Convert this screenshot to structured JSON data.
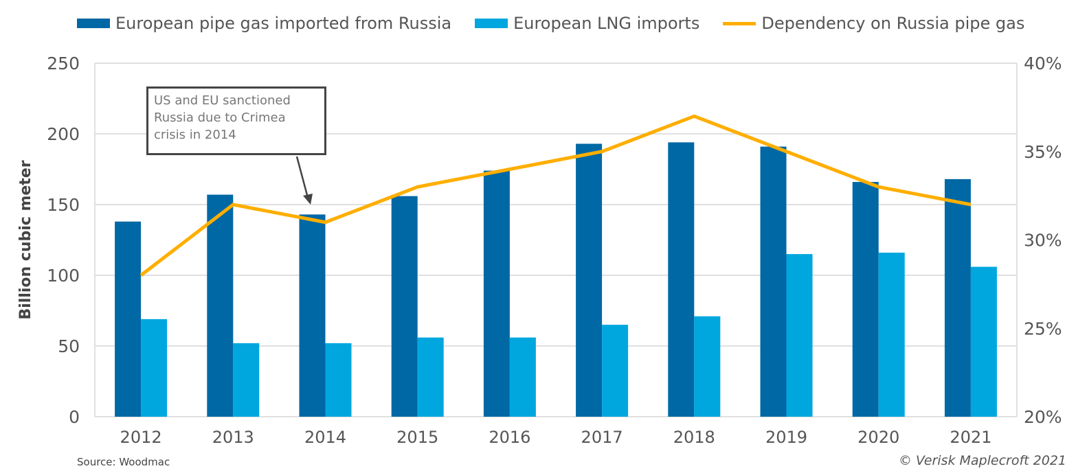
{
  "legend": {
    "pipe": "European pipe gas imported from Russia",
    "lng": "European LNG imports",
    "dependency": "Dependency on Russia pipe gas"
  },
  "source": "Source: Woodmac",
  "copyright": "© Verisk Maplecroft 2021",
  "annotation": {
    "text": "US and EU sanctioned Russia due to Crimea crisis in 2014",
    "points_to": "2014"
  },
  "chart_data": {
    "type": "bar",
    "categories": [
      "2012",
      "2013",
      "2014",
      "2015",
      "2016",
      "2017",
      "2018",
      "2019",
      "2020",
      "2021"
    ],
    "ylabel": "Billion cubic meter",
    "ylim": [
      0,
      250
    ],
    "yticks": [
      "0",
      "50",
      "100",
      "150",
      "200",
      "250"
    ],
    "y2lim": [
      20,
      40
    ],
    "y2ticks": [
      "20%",
      "25%",
      "30%",
      "35%",
      "40%"
    ],
    "grid": true,
    "legend_position": "top",
    "series": [
      {
        "name": "European pipe gas imported from Russia",
        "type": "bar",
        "axis": "left",
        "color": "#0068a5",
        "values": [
          138,
          157,
          143,
          156,
          174,
          193,
          194,
          191,
          166,
          168
        ]
      },
      {
        "name": "European LNG imports",
        "type": "bar",
        "axis": "left",
        "color": "#00a7de",
        "values": [
          69,
          52,
          52,
          56,
          56,
          65,
          71,
          115,
          116,
          106
        ]
      },
      {
        "name": "Dependency on Russia pipe gas",
        "type": "line",
        "axis": "right",
        "color": "#ffae00",
        "values": [
          28,
          32,
          31,
          33,
          34,
          35,
          37,
          35,
          33,
          32
        ]
      }
    ]
  }
}
